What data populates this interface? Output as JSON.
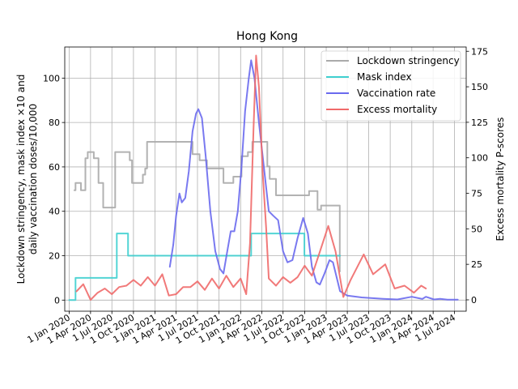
{
  "chart_data": {
    "type": "line",
    "title": "Hong Kong",
    "ylabel_left_line1": "Lockdown stringency, mask index ×10 and",
    "ylabel_left_line2": "daily vaccination doses/10,000",
    "ylabel_right": "Excess mortality P-scores",
    "xlabel": "",
    "x_ticks": [
      "1 Jan 2020",
      "1 Apr 2020",
      "1 Jul 2020",
      "1 Oct 2020",
      "1 Jan 2021",
      "1 Apr 2021",
      "1 Jul 2021",
      "1 Oct 2021",
      "1 Jan 2022",
      "1 Apr 2022",
      "1 Jul 2022",
      "1 Oct 2022",
      "1 Jan 2023",
      "1 Apr 2023",
      "1 Jul 2023",
      "1 Oct 2023",
      "1 Jan 2024",
      "1 Apr 2024",
      "1 Jul 2024"
    ],
    "left_y_ticks": [
      0,
      20,
      40,
      60,
      80,
      100
    ],
    "right_y_ticks": [
      0,
      25,
      50,
      75,
      100,
      125,
      150,
      175
    ],
    "xlim": [
      "2019-12-13",
      "2024-08-20"
    ],
    "ylim_left": [
      -5,
      114
    ],
    "ylim_right": [
      -8,
      178
    ],
    "grid": true,
    "legend_position": "top-right",
    "series": [
      {
        "name": "Lockdown stringency",
        "axis": "left",
        "color": "#aaaaaa",
        "step": true,
        "points": [
          [
            "2020-01-23",
            49.5
          ],
          [
            "2020-01-28",
            52.8
          ],
          [
            "2020-02-20",
            49.5
          ],
          [
            "2020-03-10",
            63.9
          ],
          [
            "2020-03-20",
            66.7
          ],
          [
            "2020-04-15",
            63.9
          ],
          [
            "2020-05-05",
            52.8
          ],
          [
            "2020-05-25",
            41.7
          ],
          [
            "2020-06-15",
            41.7
          ],
          [
            "2020-07-15",
            66.7
          ],
          [
            "2020-09-15",
            63.0
          ],
          [
            "2020-09-25",
            52.8
          ],
          [
            "2020-11-10",
            56.5
          ],
          [
            "2020-11-20",
            59.3
          ],
          [
            "2020-11-28",
            71.3
          ],
          [
            "2021-06-10",
            65.7
          ],
          [
            "2021-07-10",
            63.0
          ],
          [
            "2021-08-10",
            59.3
          ],
          [
            "2021-10-20",
            52.8
          ],
          [
            "2021-12-01",
            55.6
          ],
          [
            "2022-01-05",
            64.8
          ],
          [
            "2022-02-01",
            66.7
          ],
          [
            "2022-02-20",
            71.3
          ],
          [
            "2022-04-25",
            60.2
          ],
          [
            "2022-05-05",
            54.6
          ],
          [
            "2022-06-01",
            47.2
          ],
          [
            "2022-10-20",
            49.1
          ],
          [
            "2022-11-25",
            40.7
          ],
          [
            "2022-12-10",
            42.6
          ],
          [
            "2023-02-10",
            42.6
          ],
          [
            "2023-02-28",
            13.0
          ],
          [
            "2023-03-01",
            null
          ]
        ]
      },
      {
        "name": "Mask index",
        "axis": "left",
        "color": "#40d0d0",
        "step": true,
        "points": [
          [
            "2020-01-01",
            0
          ],
          [
            "2020-01-28",
            10
          ],
          [
            "2020-07-22",
            30
          ],
          [
            "2020-09-08",
            20
          ],
          [
            "2022-02-15",
            30
          ],
          [
            "2022-09-30",
            20
          ],
          [
            "2023-02-28",
            20
          ],
          [
            "2023-03-01",
            null
          ]
        ]
      },
      {
        "name": "Vaccination rate",
        "axis": "left",
        "color": "#6a6aee",
        "step": false,
        "points": [
          [
            "2021-03-05",
            15
          ],
          [
            "2021-03-20",
            25
          ],
          [
            "2021-04-01",
            38
          ],
          [
            "2021-04-15",
            48
          ],
          [
            "2021-04-25",
            44
          ],
          [
            "2021-05-10",
            46
          ],
          [
            "2021-05-25",
            58
          ],
          [
            "2021-06-10",
            76
          ],
          [
            "2021-06-25",
            84
          ],
          [
            "2021-07-05",
            86
          ],
          [
            "2021-07-20",
            82
          ],
          [
            "2021-08-05",
            65
          ],
          [
            "2021-08-25",
            40
          ],
          [
            "2021-09-15",
            22
          ],
          [
            "2021-10-05",
            14
          ],
          [
            "2021-10-20",
            12
          ],
          [
            "2021-11-05",
            22
          ],
          [
            "2021-11-20",
            31
          ],
          [
            "2021-12-05",
            31
          ],
          [
            "2021-12-20",
            40
          ],
          [
            "2022-01-05",
            60
          ],
          [
            "2022-01-20",
            85
          ],
          [
            "2022-02-05",
            100
          ],
          [
            "2022-02-15",
            108
          ],
          [
            "2022-03-01",
            100
          ],
          [
            "2022-03-20",
            80
          ],
          [
            "2022-04-10",
            60
          ],
          [
            "2022-05-01",
            40
          ],
          [
            "2022-05-20",
            38
          ],
          [
            "2022-06-10",
            36
          ],
          [
            "2022-07-01",
            22
          ],
          [
            "2022-07-20",
            17
          ],
          [
            "2022-08-10",
            18
          ],
          [
            "2022-09-01",
            28
          ],
          [
            "2022-09-25",
            37
          ],
          [
            "2022-10-15",
            30
          ],
          [
            "2022-11-01",
            15
          ],
          [
            "2022-11-20",
            8
          ],
          [
            "2022-12-05",
            7
          ],
          [
            "2022-12-25",
            12
          ],
          [
            "2023-01-15",
            18
          ],
          [
            "2023-01-30",
            17
          ],
          [
            "2023-02-15",
            10
          ],
          [
            "2023-03-01",
            4
          ],
          [
            "2023-04-01",
            2
          ],
          [
            "2023-06-01",
            1.2
          ],
          [
            "2023-09-01",
            0.6
          ],
          [
            "2023-11-01",
            0.3
          ],
          [
            "2024-01-01",
            1.5
          ],
          [
            "2024-02-15",
            0.5
          ],
          [
            "2024-03-01",
            1.5
          ],
          [
            "2024-04-05",
            0.3
          ],
          [
            "2024-05-01",
            0.6
          ],
          [
            "2024-06-01",
            0.2
          ],
          [
            "2024-07-15",
            0.2
          ]
        ]
      },
      {
        "name": "Excess mortality",
        "axis": "right",
        "color": "#f06a6a",
        "step": false,
        "points": [
          [
            "2020-02-01",
            6
          ],
          [
            "2020-03-01",
            11
          ],
          [
            "2020-04-01",
            0
          ],
          [
            "2020-05-01",
            5
          ],
          [
            "2020-06-01",
            8
          ],
          [
            "2020-07-01",
            4
          ],
          [
            "2020-08-01",
            9
          ],
          [
            "2020-09-01",
            10
          ],
          [
            "2020-10-01",
            14
          ],
          [
            "2020-11-01",
            10
          ],
          [
            "2020-12-01",
            16
          ],
          [
            "2021-01-01",
            10
          ],
          [
            "2021-02-01",
            18
          ],
          [
            "2021-03-01",
            3
          ],
          [
            "2021-04-01",
            4
          ],
          [
            "2021-05-01",
            9
          ],
          [
            "2021-06-01",
            9
          ],
          [
            "2021-07-01",
            13
          ],
          [
            "2021-08-01",
            7
          ],
          [
            "2021-09-01",
            15
          ],
          [
            "2021-10-01",
            8
          ],
          [
            "2021-11-01",
            17
          ],
          [
            "2021-12-01",
            9
          ],
          [
            "2022-01-01",
            15
          ],
          [
            "2022-01-25",
            4
          ],
          [
            "2022-02-10",
            40
          ],
          [
            "2022-02-25",
            120
          ],
          [
            "2022-03-08",
            172
          ],
          [
            "2022-03-20",
            150
          ],
          [
            "2022-04-05",
            90
          ],
          [
            "2022-04-20",
            50
          ],
          [
            "2022-05-01",
            15
          ],
          [
            "2022-06-01",
            10
          ],
          [
            "2022-07-01",
            16
          ],
          [
            "2022-08-01",
            12
          ],
          [
            "2022-09-01",
            16
          ],
          [
            "2022-10-01",
            24
          ],
          [
            "2022-11-01",
            17
          ],
          [
            "2022-12-01",
            32
          ],
          [
            "2023-01-10",
            52
          ],
          [
            "2023-02-10",
            34
          ],
          [
            "2023-03-15",
            2
          ],
          [
            "2023-04-15",
            14
          ],
          [
            "2023-06-10",
            32
          ],
          [
            "2023-07-20",
            18
          ],
          [
            "2023-09-10",
            25
          ],
          [
            "2023-10-20",
            8
          ],
          [
            "2023-12-01",
            10
          ],
          [
            "2024-01-10",
            5
          ],
          [
            "2024-02-10",
            10
          ],
          [
            "2024-03-01",
            8
          ]
        ]
      }
    ]
  }
}
